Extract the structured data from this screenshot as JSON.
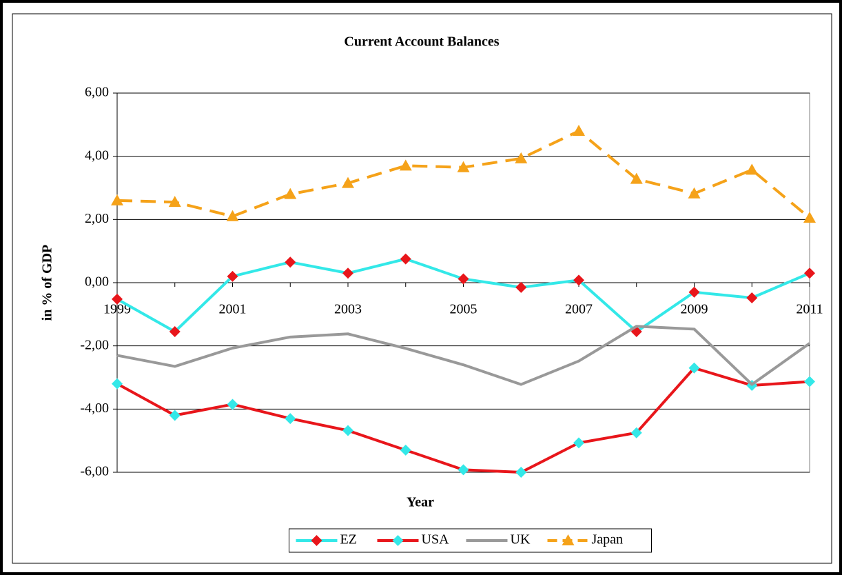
{
  "chart_data": {
    "type": "line",
    "title": "Current Account Balances",
    "x_label": "Year",
    "y_label": "in % of GDP",
    "categories": [
      "1999",
      null,
      "2001",
      null,
      "2003",
      null,
      "2005",
      null,
      "2007",
      null,
      "2009",
      null,
      "2011"
    ],
    "ylim": [
      -6,
      6
    ],
    "yticks": [
      {
        "value": -6,
        "label": "-6,00"
      },
      {
        "value": -4,
        "label": "-4,00"
      },
      {
        "value": -2,
        "label": "-2,00"
      },
      {
        "value": 0,
        "label": "0,00"
      },
      {
        "value": 2,
        "label": "2,00"
      },
      {
        "value": 4,
        "label": "4,00"
      },
      {
        "value": 6,
        "label": "6,00"
      }
    ],
    "grid": true,
    "legend": "bottom",
    "series": [
      {
        "name": "EZ",
        "color": "#33e8e8",
        "marker": "diamond",
        "marker_color": "#e8161b",
        "dashed": false,
        "values": [
          -0.52,
          -1.55,
          0.2,
          0.65,
          0.3,
          0.75,
          0.12,
          -0.15,
          0.08,
          -1.55,
          -0.3,
          -0.48,
          0.3
        ]
      },
      {
        "name": "USA",
        "color": "#e8161b",
        "marker": "diamond",
        "marker_color": "#33e8e8",
        "dashed": false,
        "values": [
          -3.2,
          -4.2,
          -3.85,
          -4.3,
          -4.68,
          -5.3,
          -5.92,
          -6.0,
          -5.07,
          -4.75,
          -2.7,
          -3.25,
          -3.13
        ]
      },
      {
        "name": "UK",
        "color": "#999999",
        "marker": "none",
        "marker_color": "#999999",
        "dashed": false,
        "values": [
          -2.3,
          -2.65,
          -2.07,
          -1.72,
          -1.62,
          -2.08,
          -2.6,
          -3.22,
          -2.48,
          -1.38,
          -1.47,
          -3.22,
          -1.92
        ]
      },
      {
        "name": "Japan",
        "color": "#f5a219",
        "marker": "triangle",
        "marker_color": "#f5a219",
        "dashed": true,
        "values": [
          2.6,
          2.55,
          2.1,
          2.8,
          3.15,
          3.7,
          3.65,
          3.93,
          4.8,
          3.28,
          2.82,
          3.57,
          2.05
        ]
      }
    ]
  }
}
